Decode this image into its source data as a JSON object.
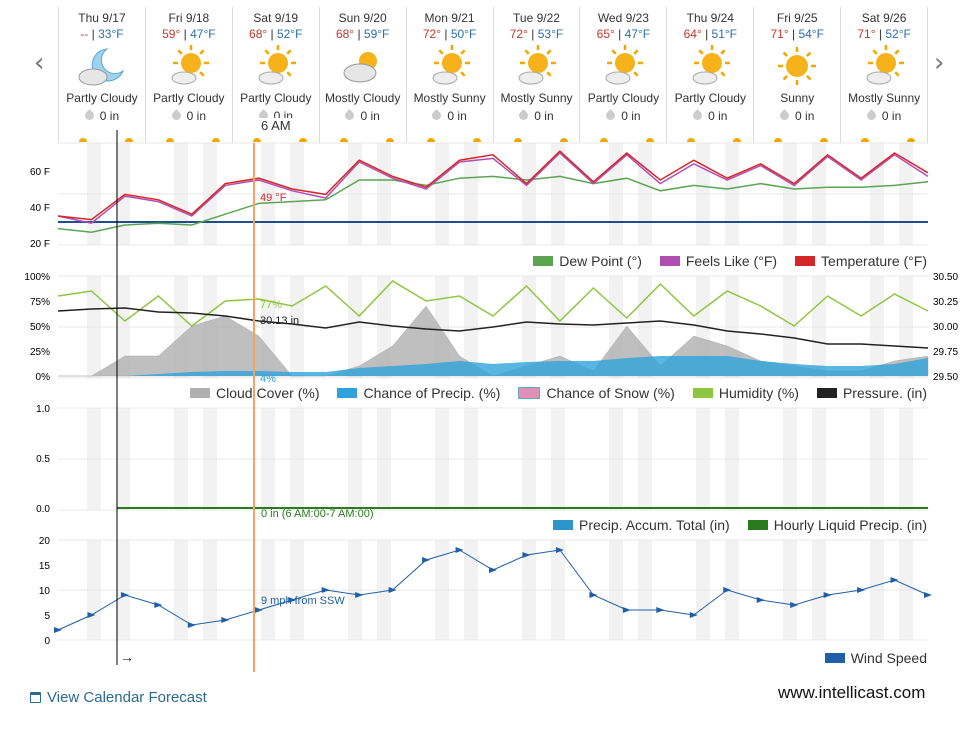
{
  "nav": {
    "prev_label": "‹",
    "next_label": "›"
  },
  "days": [
    {
      "date": "Thu 9/17",
      "hi": "--",
      "lo": "33°F",
      "icon": "moon-cloud-icon",
      "cond": "Partly Cloudy",
      "precip": "0 in"
    },
    {
      "date": "Fri 9/18",
      "hi": "59°",
      "lo": "47°F",
      "icon": "sun-cloud-icon",
      "cond": "Partly Cloudy",
      "precip": "0 in"
    },
    {
      "date": "Sat 9/19",
      "hi": "68°",
      "lo": "52°F",
      "icon": "sun-cloud-icon",
      "cond": "Partly Cloudy",
      "precip": "0 in"
    },
    {
      "date": "Sun 9/20",
      "hi": "68°",
      "lo": "59°F",
      "icon": "cloud-sun-icon",
      "cond": "Mostly Cloudy",
      "precip": "0 in"
    },
    {
      "date": "Mon 9/21",
      "hi": "72°",
      "lo": "50°F",
      "icon": "sun-cloud-icon",
      "cond": "Mostly Sunny",
      "precip": "0 in"
    },
    {
      "date": "Tue 9/22",
      "hi": "72°",
      "lo": "53°F",
      "icon": "sun-cloud-icon",
      "cond": "Mostly Sunny",
      "precip": "0 in"
    },
    {
      "date": "Wed 9/23",
      "hi": "65°",
      "lo": "47°F",
      "icon": "sun-cloud-icon",
      "cond": "Partly Cloudy",
      "precip": "0 in"
    },
    {
      "date": "Thu 9/24",
      "hi": "64°",
      "lo": "51°F",
      "icon": "sun-cloud-icon",
      "cond": "Partly Cloudy",
      "precip": "0 in"
    },
    {
      "date": "Fri 9/25",
      "hi": "71°",
      "lo": "54°F",
      "icon": "sun-icon",
      "cond": "Sunny",
      "precip": "0 in"
    },
    {
      "date": "Sat 9/26",
      "hi": "71°",
      "lo": "52°F",
      "icon": "sun-cloud-icon",
      "cond": "Mostly Sunny",
      "precip": "0 in"
    }
  ],
  "tooltip_time": "6 AM",
  "temp_chart": {
    "yticks": [
      "60 F",
      "40 F",
      "20 F"
    ],
    "hover_label": "49 °F",
    "legend": [
      "Dew Point (°)",
      "Feels Like (°F)",
      "Temperature (°F)"
    ]
  },
  "atmos_chart": {
    "yticks_left": [
      "100%",
      "75%",
      "50%",
      "25%",
      "0%"
    ],
    "yticks_right": [
      "30.50",
      "30.25",
      "30.00",
      "29.75",
      "29.50"
    ],
    "humidity_label": "77%",
    "pressure_label": "30.13 in",
    "precip_label": "4%",
    "legend": [
      "Cloud Cover (%)",
      "Chance of Precip. (%)",
      "Chance of Snow (%)",
      "Humidity (%)",
      "Pressure. (in)"
    ]
  },
  "precip_chart": {
    "yticks": [
      "1.0",
      "0.5",
      "0.0"
    ],
    "hover_label": "0 in (6 AM:00-7 AM:00)",
    "legend": [
      "Precip. Accum. Total (in)",
      "Hourly Liquid Precip. (in)"
    ]
  },
  "wind_chart": {
    "yticks": [
      "20",
      "15",
      "10",
      "5",
      "0"
    ],
    "hover_label": "9 mph from SSW",
    "arrow_symbol": "→",
    "legend": [
      "Wind Speed"
    ]
  },
  "footer": {
    "calendar_link": "View Calendar Forecast",
    "brand": "www.intellicast.com"
  },
  "colors": {
    "temperature": "#d62728",
    "feels_like": "#b04fb3",
    "dew_point": "#5ba552",
    "cloud": "#b0b0b0",
    "precip": "#2fa3d9",
    "snow": "#e08fb8",
    "humidity": "#8dc63f",
    "pressure": "#222222",
    "accum": "#2b95c9",
    "hourly": "#2a7a1e",
    "wind": "#1f5fa8"
  },
  "chart_data": [
    {
      "type": "line",
      "title": "",
      "ylabel": "",
      "ylim": [
        20,
        75
      ],
      "series": [
        {
          "name": "Temperature (°F)",
          "values": [
            35,
            33,
            47,
            44,
            36,
            53,
            56,
            50,
            47,
            66,
            57,
            51,
            66,
            69,
            53,
            71,
            54,
            70,
            55,
            66,
            56,
            64,
            53,
            69,
            56,
            70,
            59
          ]
        },
        {
          "name": "Feels Like (°F)",
          "values": [
            35,
            31,
            46,
            43,
            35,
            52,
            55,
            49,
            45,
            65,
            56,
            50,
            65,
            67,
            52,
            70,
            53,
            69,
            53,
            64,
            55,
            63,
            52,
            68,
            55,
            69,
            57
          ]
        },
        {
          "name": "Dew Point (°)",
          "values": [
            28,
            26,
            30,
            31,
            30,
            36,
            42,
            43,
            44,
            55,
            55,
            52,
            56,
            57,
            55,
            57,
            53,
            56,
            49,
            52,
            50,
            53,
            50,
            51,
            51,
            52,
            54
          ]
        }
      ]
    },
    {
      "type": "line",
      "title": "",
      "ylim": [
        0,
        100
      ],
      "series": [
        {
          "name": "Humidity (%)",
          "values": [
            80,
            85,
            55,
            80,
            50,
            75,
            77,
            70,
            90,
            60,
            95,
            75,
            80,
            60,
            90,
            55,
            88,
            58,
            92,
            60,
            85,
            70,
            50,
            80,
            60,
            82,
            65
          ]
        },
        {
          "name": "Cloud Cover (%)",
          "values": [
            0,
            0,
            20,
            20,
            50,
            60,
            40,
            0,
            0,
            10,
            30,
            70,
            20,
            0,
            10,
            20,
            5,
            50,
            10,
            40,
            30,
            15,
            10,
            5,
            5,
            15,
            20
          ]
        },
        {
          "name": "Chance of Precip. (%)",
          "values": [
            0,
            0,
            0,
            2,
            4,
            5,
            5,
            4,
            4,
            8,
            10,
            12,
            15,
            12,
            14,
            15,
            15,
            18,
            20,
            20,
            20,
            15,
            12,
            10,
            10,
            12,
            18
          ]
        },
        {
          "name": "Pressure. (in)",
          "values": [
            30.15,
            30.17,
            30.18,
            30.14,
            30.13,
            30.1,
            30.05,
            30.02,
            29.98,
            30.04,
            30.0,
            29.97,
            29.95,
            29.99,
            30.04,
            30.02,
            30.01,
            30.03,
            30.05,
            30.01,
            29.95,
            29.92,
            29.88,
            29.82,
            29.82,
            29.8,
            29.78
          ]
        }
      ]
    },
    {
      "type": "line",
      "title": "",
      "ylim": [
        0,
        1
      ],
      "series": [
        {
          "name": "Precip. Accum. Total (in)",
          "values": [
            0,
            0,
            0,
            0,
            0,
            0,
            0,
            0,
            0,
            0
          ]
        },
        {
          "name": "Hourly Liquid Precip. (in)",
          "values": [
            0,
            0,
            0,
            0,
            0,
            0,
            0,
            0,
            0,
            0
          ]
        }
      ]
    },
    {
      "type": "line",
      "title": "",
      "ylim": [
        0,
        20
      ],
      "series": [
        {
          "name": "Wind Speed",
          "values": [
            2,
            5,
            9,
            7,
            3,
            4,
            6,
            8,
            10,
            9,
            10,
            16,
            18,
            14,
            17,
            18,
            9,
            6,
            6,
            5,
            10,
            8,
            7,
            9,
            10,
            12,
            9
          ]
        }
      ]
    }
  ]
}
